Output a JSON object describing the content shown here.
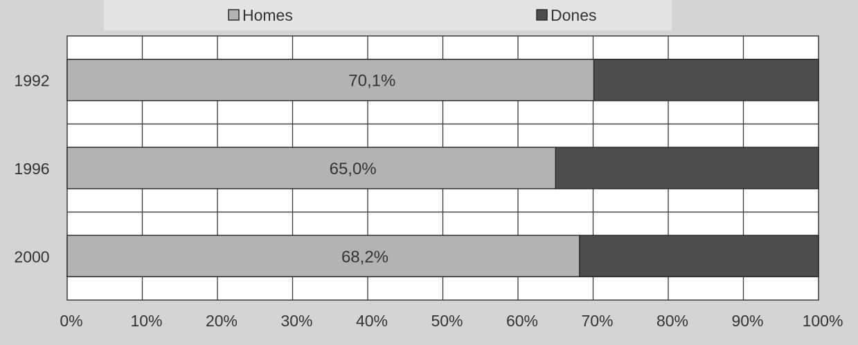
{
  "chart_data": {
    "type": "bar",
    "orientation": "horizontal",
    "stacked": "percent",
    "categories": [
      "1992",
      "1996",
      "2000"
    ],
    "series": [
      {
        "name": "Homes",
        "values": [
          70.1,
          65.0,
          68.2
        ],
        "labels": [
          "70,1%",
          "65,0%",
          "68,2%"
        ],
        "color": "#b3b3b3"
      },
      {
        "name": "Dones",
        "values": [
          29.9,
          35.0,
          31.8
        ],
        "color": "#4d4d4d"
      }
    ],
    "xlim": [
      0,
      100
    ],
    "xticks": [
      "0%",
      "10%",
      "20%",
      "30%",
      "40%",
      "50%",
      "60%",
      "70%",
      "80%",
      "90%",
      "100%"
    ],
    "grid": true,
    "legend_position": "top"
  },
  "colors": {
    "background": "#d4d4d4",
    "plot_background": "#ffffff",
    "grid": "#3a3a3a",
    "text": "#333333"
  }
}
